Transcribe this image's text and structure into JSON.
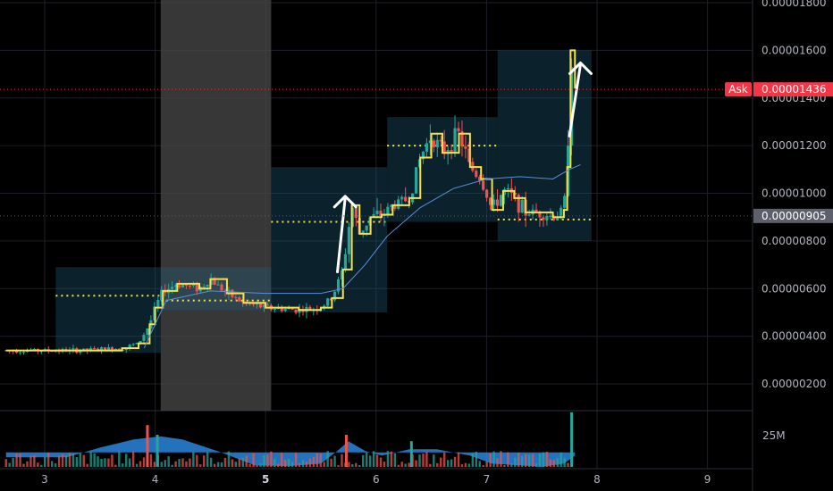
{
  "chart_data": {
    "type": "candlestick",
    "y_axis": {
      "range": [
        1.2e-06,
        1.8e-06
      ],
      "ticks": [
        "0.00001800",
        "0.00001600",
        "0.00001400",
        "0.00001200",
        "0.00001000",
        "0.00000800",
        "0.00000600",
        "0.00000400",
        "0.00000200"
      ],
      "tick_values": [
        1.8e-05,
        1.6e-05,
        1.4e-05,
        1.2e-05,
        1e-05,
        8e-06,
        6e-06,
        4e-06,
        2e-06
      ]
    },
    "x_axis": {
      "range": [
        2.65,
        9.8
      ],
      "ticks": [
        "3",
        "4",
        "5",
        "6",
        "7",
        "8",
        "9"
      ],
      "tick_values": [
        3,
        4,
        5,
        6,
        7,
        8,
        9
      ],
      "highlighted_tick": "5"
    },
    "grid": true,
    "price_tags": [
      {
        "label": "Ask",
        "value_text": "0.00001436",
        "value": 1.436e-05,
        "color": "#f23645",
        "style": "dotted-line"
      },
      {
        "label": "",
        "value_text": "0.00000905",
        "value": 9.05e-06,
        "color": "#5d606b",
        "style": "dotted-line"
      }
    ],
    "volume_label": "25M",
    "highlight_span": {
      "x_start": 4.05,
      "x_end": 5.05
    },
    "ranges": [
      {
        "x_start": 3.1,
        "x_end": 4.05,
        "low": 3.3e-06,
        "high": 6.9e-06,
        "poc": 5.7e-06
      },
      {
        "x_start": 4.05,
        "x_end": 5.05,
        "low": 5.1e-06,
        "high": 6.9e-06,
        "poc": 5.5e-06
      },
      {
        "x_start": 5.05,
        "x_end": 6.1,
        "low": 5e-06,
        "high": 1.11e-05,
        "poc": 8.8e-06
      },
      {
        "x_start": 6.1,
        "x_end": 7.1,
        "low": 8.8e-06,
        "high": 1.32e-05,
        "poc": 1.2e-05
      },
      {
        "x_start": 7.1,
        "x_end": 7.95,
        "low": 8e-06,
        "high": 1.6e-05,
        "poc": 8.9e-06
      }
    ],
    "arrows": [
      {
        "from": [
          5.65,
          6.7e-06
        ],
        "to": [
          5.72,
          9.8e-06
        ]
      },
      {
        "from": [
          7.75,
          1.24e-05
        ],
        "to": [
          7.85,
          1.54e-05
        ]
      }
    ],
    "price_path": [
      [
        2.65,
        3.4e-06
      ],
      [
        3.3,
        3.4e-06
      ],
      [
        3.7,
        3.5e-06
      ],
      [
        3.85,
        3.7e-06
      ],
      [
        3.95,
        4.5e-06
      ],
      [
        4.0,
        5.2e-06
      ],
      [
        4.07,
        5.9e-06
      ],
      [
        4.2,
        6.2e-06
      ],
      [
        4.4,
        6e-06
      ],
      [
        4.5,
        6.4e-06
      ],
      [
        4.65,
        5.8e-06
      ],
      [
        4.8,
        5.4e-06
      ],
      [
        5.0,
        5.2e-06
      ],
      [
        5.3,
        5.1e-06
      ],
      [
        5.5,
        5.2e-06
      ],
      [
        5.6,
        5.6e-06
      ],
      [
        5.7,
        6.8e-06
      ],
      [
        5.78,
        9.5e-06
      ],
      [
        5.85,
        8.3e-06
      ],
      [
        5.95,
        9e-06
      ],
      [
        6.05,
        9.1e-06
      ],
      [
        6.15,
        9.5e-06
      ],
      [
        6.3,
        9.8e-06
      ],
      [
        6.4,
        1.15e-05
      ],
      [
        6.5,
        1.25e-05
      ],
      [
        6.6,
        1.17e-05
      ],
      [
        6.75,
        1.25e-05
      ],
      [
        6.85,
        1.11e-05
      ],
      [
        6.95,
        1.06e-05
      ],
      [
        7.05,
        9.3e-06
      ],
      [
        7.15,
        1.01e-05
      ],
      [
        7.25,
        9.8e-06
      ],
      [
        7.35,
        9.2e-06
      ],
      [
        7.5,
        9.2e-06
      ],
      [
        7.6,
        9e-06
      ],
      [
        7.7,
        9.3e-06
      ],
      [
        7.73,
        1.11e-05
      ],
      [
        7.76,
        1.6e-05
      ],
      [
        7.8,
        1.44e-05
      ]
    ],
    "ma_line": [
      [
        3.9,
        3.5e-06
      ],
      [
        4.1,
        5.5e-06
      ],
      [
        4.5,
        5.9e-06
      ],
      [
        5.0,
        5.8e-06
      ],
      [
        5.5,
        5.8e-06
      ],
      [
        5.7,
        6e-06
      ],
      [
        5.9,
        7e-06
      ],
      [
        6.1,
        8.2e-06
      ],
      [
        6.4,
        9.4e-06
      ],
      [
        6.7,
        1.02e-05
      ],
      [
        7.0,
        1.06e-05
      ],
      [
        7.3,
        1.07e-05
      ],
      [
        7.6,
        1.06e-05
      ],
      [
        7.75,
        1.1e-05
      ],
      [
        7.85,
        1.12e-05
      ]
    ],
    "volume_ma": [
      [
        2.65,
        0.3
      ],
      [
        3.2,
        0.3
      ],
      [
        3.5,
        0.6
      ],
      [
        3.8,
        0.85
      ],
      [
        4.05,
        0.95
      ],
      [
        4.25,
        0.85
      ],
      [
        4.6,
        0.45
      ],
      [
        4.9,
        0.05
      ],
      [
        5.2,
        0.02
      ],
      [
        5.5,
        0.1
      ],
      [
        5.65,
        0.5
      ],
      [
        5.75,
        0.8
      ],
      [
        5.9,
        0.5
      ],
      [
        6.05,
        0.35
      ],
      [
        6.3,
        0.55
      ],
      [
        6.55,
        0.55
      ],
      [
        6.85,
        0.35
      ],
      [
        7.05,
        0.1
      ],
      [
        7.3,
        0.05
      ],
      [
        7.5,
        0.0
      ],
      [
        7.7,
        0.1
      ],
      [
        7.8,
        0.35
      ]
    ],
    "volume_spikes": [
      {
        "x": 3.93,
        "v": 1.3,
        "color": "#ef5350"
      },
      {
        "x": 4.02,
        "v": 1.0,
        "color": "#26a69a"
      },
      {
        "x": 5.73,
        "v": 1.0,
        "color": "#ef5350"
      },
      {
        "x": 6.32,
        "v": 0.8,
        "color": "#26a69a"
      },
      {
        "x": 7.77,
        "v": 1.7,
        "color": "#26a69a"
      }
    ],
    "colors": {
      "up": "#26a69a",
      "down": "#ef5350",
      "step_line": "#f5e24b",
      "ma": "#5b8fd6",
      "volume_ma_fill": "#2a86dc",
      "range_box": "#1f5f7a",
      "grid": "#1c1f26"
    }
  }
}
